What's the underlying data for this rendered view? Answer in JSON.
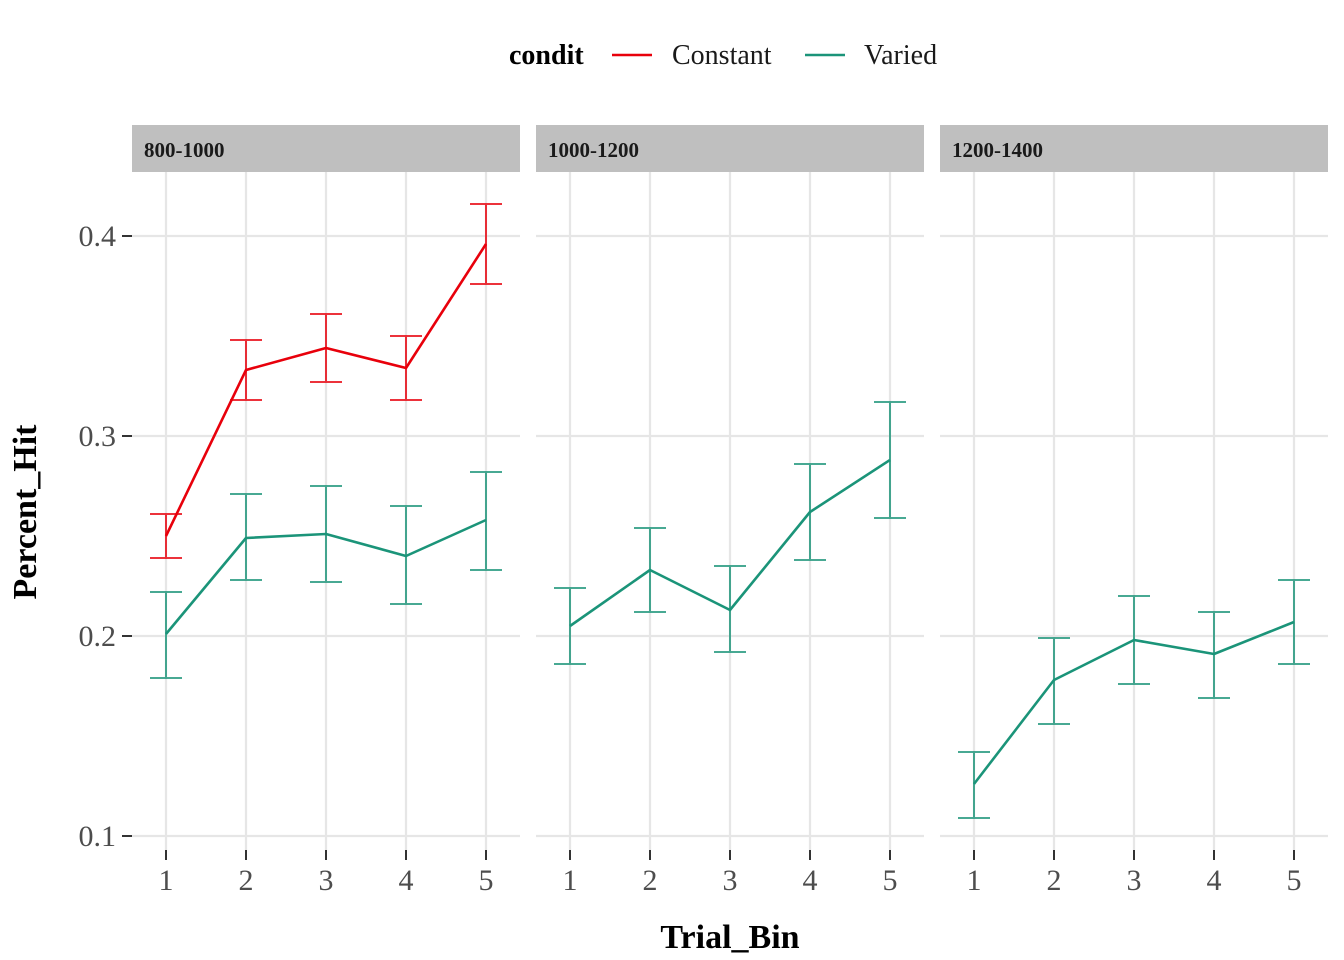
{
  "chart_data": {
    "type": "line",
    "facet_by": "Trial_Bin facets",
    "x": [
      1,
      2,
      3,
      4,
      5
    ],
    "xlabel": "Trial_Bin",
    "ylabel": "Percent_Hit",
    "ylim": [
      0.1,
      0.43
    ],
    "yticks": [
      0.1,
      0.2,
      0.3,
      0.4
    ],
    "ytick_labels": [
      "0.1",
      "0.2",
      "0.3",
      "0.4"
    ],
    "xtick_labels": [
      "1",
      "2",
      "3",
      "4",
      "5"
    ],
    "grid": true,
    "legend": {
      "title": "condit",
      "position": "top",
      "entries": [
        {
          "name": "Constant",
          "color": "#E8000B"
        },
        {
          "name": "Varied",
          "color": "#1B9479"
        }
      ]
    },
    "panels": [
      {
        "label": "800-1000",
        "series": [
          {
            "name": "Constant",
            "color": "#E8000B",
            "values": [
              0.25,
              0.333,
              0.344,
              0.334,
              0.396
            ],
            "lower": [
              0.239,
              0.318,
              0.327,
              0.318,
              0.376
            ],
            "upper": [
              0.261,
              0.348,
              0.361,
              0.35,
              0.416
            ]
          },
          {
            "name": "Varied",
            "color": "#1B9479",
            "values": [
              0.201,
              0.249,
              0.251,
              0.24,
              0.258
            ],
            "lower": [
              0.179,
              0.228,
              0.227,
              0.216,
              0.233
            ],
            "upper": [
              0.222,
              0.271,
              0.275,
              0.265,
              0.282
            ]
          }
        ]
      },
      {
        "label": "1000-1200",
        "series": [
          {
            "name": "Varied",
            "color": "#1B9479",
            "values": [
              0.205,
              0.233,
              0.213,
              0.262,
              0.288
            ],
            "lower": [
              0.186,
              0.212,
              0.192,
              0.238,
              0.259
            ],
            "upper": [
              0.224,
              0.254,
              0.235,
              0.286,
              0.317
            ]
          }
        ]
      },
      {
        "label": "1200-1400",
        "series": [
          {
            "name": "Varied",
            "color": "#1B9479",
            "values": [
              0.126,
              0.178,
              0.198,
              0.191,
              0.207
            ],
            "lower": [
              0.109,
              0.156,
              0.176,
              0.169,
              0.186
            ],
            "upper": [
              0.142,
              0.199,
              0.22,
              0.212,
              0.228
            ]
          }
        ]
      }
    ]
  }
}
